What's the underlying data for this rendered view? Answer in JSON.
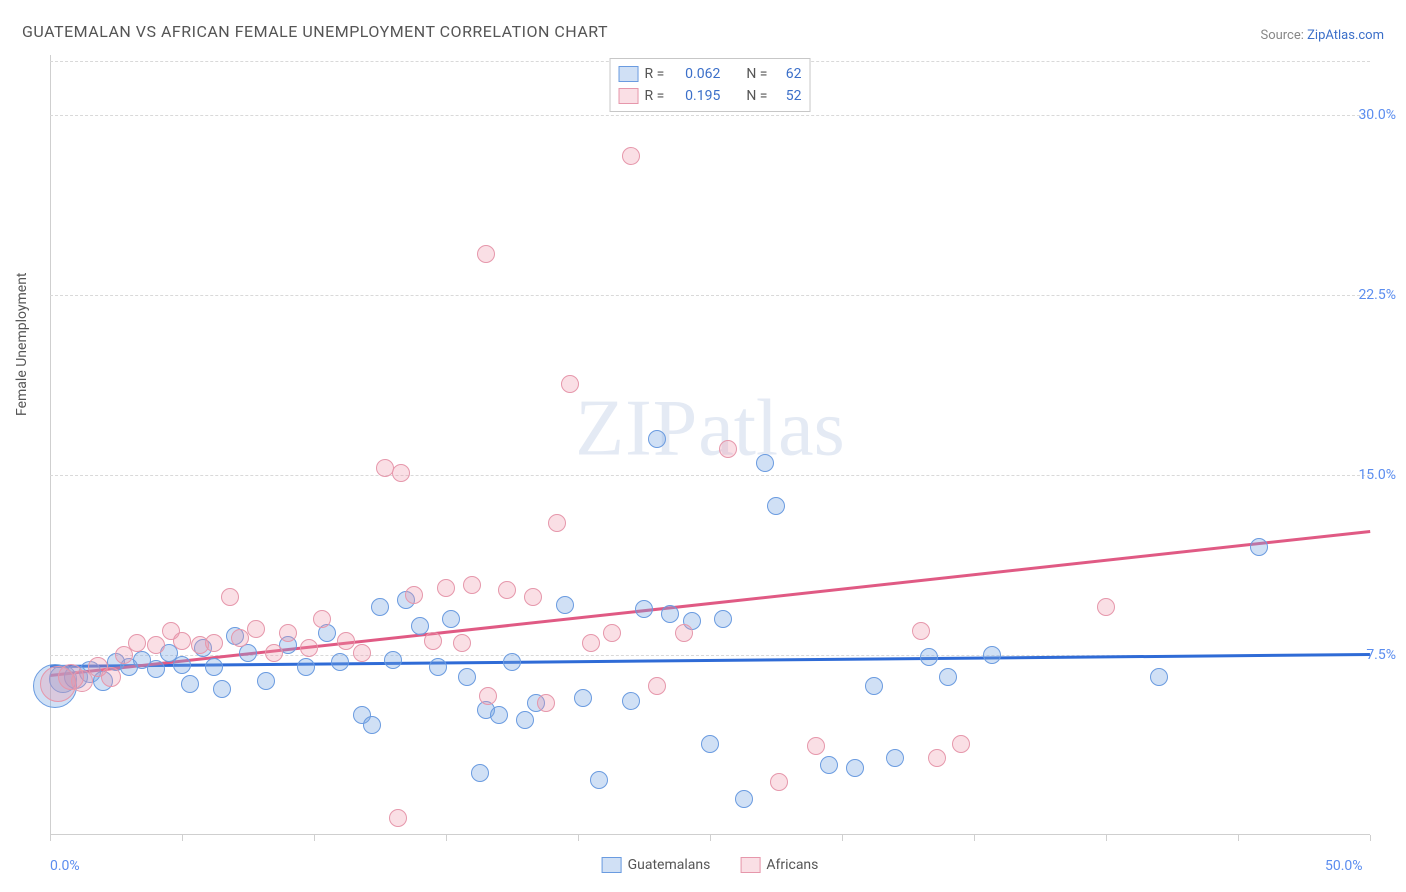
{
  "chart": {
    "type": "scatter",
    "title": "GUATEMALAN VS AFRICAN FEMALE UNEMPLOYMENT CORRELATION CHART",
    "source_label": "Source: ",
    "source_name": "ZipAtlas.com",
    "ylabel": "Female Unemployment",
    "watermark_primary": "ZIP",
    "watermark_secondary": "atlas",
    "background_color": "#ffffff",
    "grid_color": "#d9d9d9",
    "axis_color": "#cfcfcf",
    "tick_color": "#5b8def",
    "title_color": "#555555",
    "title_fontsize": 16,
    "label_fontsize": 14,
    "xlim": [
      0,
      50
    ],
    "ylim": [
      0,
      32.5
    ],
    "xticks": [
      0,
      5,
      10,
      15,
      20,
      25,
      30,
      35,
      40,
      45,
      50
    ],
    "xtick_labels": {
      "0": "0.0%",
      "50": "50.0%"
    },
    "yticks": [
      7.5,
      15.0,
      22.5,
      30.0
    ],
    "ytick_labels": [
      "7.5%",
      "15.0%",
      "22.5%",
      "30.0%"
    ],
    "series": [
      {
        "name": "Guatemalans",
        "fill_color": "rgba(120,165,225,0.35)",
        "stroke_color": "#6a9be0",
        "trend_color": "#2f6bd6",
        "trend_width": 2.5,
        "marker_radius": 9,
        "marker_stroke_width": 1.5,
        "R": "0.062",
        "N": "62",
        "trend": {
          "x1": 0,
          "y1": 7.1,
          "x2": 50,
          "y2": 7.6
        },
        "points": [
          {
            "x": 0.2,
            "y": 6.2,
            "r": 22
          },
          {
            "x": 0.5,
            "y": 6.5,
            "r": 14
          },
          {
            "x": 1.0,
            "y": 6.6,
            "r": 12
          },
          {
            "x": 1.5,
            "y": 6.8,
            "r": 11
          },
          {
            "x": 2.0,
            "y": 6.4,
            "r": 10
          },
          {
            "x": 2.5,
            "y": 7.2,
            "r": 9
          },
          {
            "x": 3.0,
            "y": 7.0,
            "r": 9
          },
          {
            "x": 3.5,
            "y": 7.3,
            "r": 9
          },
          {
            "x": 4.0,
            "y": 6.9,
            "r": 9
          },
          {
            "x": 4.5,
            "y": 7.6,
            "r": 9
          },
          {
            "x": 5.0,
            "y": 7.1,
            "r": 9
          },
          {
            "x": 5.3,
            "y": 6.3,
            "r": 9
          },
          {
            "x": 5.8,
            "y": 7.8,
            "r": 9
          },
          {
            "x": 6.2,
            "y": 7.0,
            "r": 9
          },
          {
            "x": 6.5,
            "y": 6.1,
            "r": 9
          },
          {
            "x": 7.0,
            "y": 8.3,
            "r": 9
          },
          {
            "x": 7.5,
            "y": 7.6,
            "r": 9
          },
          {
            "x": 8.2,
            "y": 6.4,
            "r": 9
          },
          {
            "x": 9.0,
            "y": 7.9,
            "r": 9
          },
          {
            "x": 9.7,
            "y": 7.0,
            "r": 9
          },
          {
            "x": 10.5,
            "y": 8.4,
            "r": 9
          },
          {
            "x": 11.0,
            "y": 7.2,
            "r": 9
          },
          {
            "x": 11.8,
            "y": 5.0,
            "r": 9
          },
          {
            "x": 12.2,
            "y": 4.6,
            "r": 9
          },
          {
            "x": 12.5,
            "y": 9.5,
            "r": 9
          },
          {
            "x": 13.0,
            "y": 7.3,
            "r": 9
          },
          {
            "x": 13.5,
            "y": 9.8,
            "r": 9
          },
          {
            "x": 14.0,
            "y": 8.7,
            "r": 9
          },
          {
            "x": 14.7,
            "y": 7.0,
            "r": 9
          },
          {
            "x": 15.2,
            "y": 9.0,
            "r": 9
          },
          {
            "x": 15.8,
            "y": 6.6,
            "r": 9
          },
          {
            "x": 16.3,
            "y": 2.6,
            "r": 9
          },
          {
            "x": 16.5,
            "y": 5.2,
            "r": 9
          },
          {
            "x": 17.0,
            "y": 5.0,
            "r": 9
          },
          {
            "x": 17.5,
            "y": 7.2,
            "r": 9
          },
          {
            "x": 18.0,
            "y": 4.8,
            "r": 9
          },
          {
            "x": 18.4,
            "y": 5.5,
            "r": 9
          },
          {
            "x": 19.5,
            "y": 9.6,
            "r": 9
          },
          {
            "x": 20.2,
            "y": 5.7,
            "r": 9
          },
          {
            "x": 20.8,
            "y": 2.3,
            "r": 9
          },
          {
            "x": 22.0,
            "y": 5.6,
            "r": 9
          },
          {
            "x": 22.5,
            "y": 9.4,
            "r": 9
          },
          {
            "x": 23.0,
            "y": 16.5,
            "r": 9
          },
          {
            "x": 23.5,
            "y": 9.2,
            "r": 9
          },
          {
            "x": 24.3,
            "y": 8.9,
            "r": 9
          },
          {
            "x": 25.0,
            "y": 3.8,
            "r": 9
          },
          {
            "x": 25.5,
            "y": 9.0,
            "r": 9
          },
          {
            "x": 26.3,
            "y": 1.5,
            "r": 9
          },
          {
            "x": 27.1,
            "y": 15.5,
            "r": 9
          },
          {
            "x": 27.5,
            "y": 13.7,
            "r": 9
          },
          {
            "x": 29.5,
            "y": 2.9,
            "r": 9
          },
          {
            "x": 30.5,
            "y": 2.8,
            "r": 9
          },
          {
            "x": 31.2,
            "y": 6.2,
            "r": 9
          },
          {
            "x": 32.0,
            "y": 3.2,
            "r": 9
          },
          {
            "x": 33.3,
            "y": 7.4,
            "r": 9
          },
          {
            "x": 34.0,
            "y": 6.6,
            "r": 9
          },
          {
            "x": 35.7,
            "y": 7.5,
            "r": 9
          },
          {
            "x": 42.0,
            "y": 6.6,
            "r": 9
          },
          {
            "x": 45.8,
            "y": 12.0,
            "r": 9
          }
        ]
      },
      {
        "name": "Africans",
        "fill_color": "rgba(240,150,170,0.30)",
        "stroke_color": "#e697ab",
        "trend_color": "#e05a84",
        "trend_width": 2.5,
        "marker_radius": 9,
        "marker_stroke_width": 1.5,
        "R": "0.195",
        "N": "52",
        "trend": {
          "x1": 0,
          "y1": 6.7,
          "x2": 50,
          "y2": 12.7
        },
        "points": [
          {
            "x": 0.3,
            "y": 6.3,
            "r": 18
          },
          {
            "x": 0.8,
            "y": 6.6,
            "r": 13
          },
          {
            "x": 1.2,
            "y": 6.4,
            "r": 11
          },
          {
            "x": 1.8,
            "y": 7.0,
            "r": 10
          },
          {
            "x": 2.3,
            "y": 6.6,
            "r": 10
          },
          {
            "x": 2.8,
            "y": 7.5,
            "r": 9
          },
          {
            "x": 3.3,
            "y": 8.0,
            "r": 9
          },
          {
            "x": 4.0,
            "y": 7.9,
            "r": 9
          },
          {
            "x": 4.6,
            "y": 8.5,
            "r": 9
          },
          {
            "x": 5.0,
            "y": 8.1,
            "r": 9
          },
          {
            "x": 5.7,
            "y": 7.9,
            "r": 9
          },
          {
            "x": 6.2,
            "y": 8.0,
            "r": 9
          },
          {
            "x": 6.8,
            "y": 9.9,
            "r": 9
          },
          {
            "x": 7.2,
            "y": 8.2,
            "r": 9
          },
          {
            "x": 7.8,
            "y": 8.6,
            "r": 9
          },
          {
            "x": 8.5,
            "y": 7.6,
            "r": 9
          },
          {
            "x": 9.0,
            "y": 8.4,
            "r": 9
          },
          {
            "x": 9.8,
            "y": 7.8,
            "r": 9
          },
          {
            "x": 10.3,
            "y": 9.0,
            "r": 9
          },
          {
            "x": 11.2,
            "y": 8.1,
            "r": 9
          },
          {
            "x": 11.8,
            "y": 7.6,
            "r": 9
          },
          {
            "x": 12.7,
            "y": 15.3,
            "r": 9
          },
          {
            "x": 13.2,
            "y": 0.7,
            "r": 9
          },
          {
            "x": 13.3,
            "y": 15.1,
            "r": 9
          },
          {
            "x": 13.8,
            "y": 10.0,
            "r": 9
          },
          {
            "x": 14.5,
            "y": 8.1,
            "r": 9
          },
          {
            "x": 15.0,
            "y": 10.3,
            "r": 9
          },
          {
            "x": 15.6,
            "y": 8.0,
            "r": 9
          },
          {
            "x": 16.0,
            "y": 10.4,
            "r": 9
          },
          {
            "x": 16.5,
            "y": 24.2,
            "r": 9
          },
          {
            "x": 16.6,
            "y": 5.8,
            "r": 9
          },
          {
            "x": 17.3,
            "y": 10.2,
            "r": 9
          },
          {
            "x": 18.3,
            "y": 9.9,
            "r": 9
          },
          {
            "x": 18.8,
            "y": 5.5,
            "r": 9
          },
          {
            "x": 19.2,
            "y": 13.0,
            "r": 9
          },
          {
            "x": 19.7,
            "y": 18.8,
            "r": 9
          },
          {
            "x": 20.5,
            "y": 8.0,
            "r": 9
          },
          {
            "x": 21.3,
            "y": 8.4,
            "r": 9
          },
          {
            "x": 22.0,
            "y": 28.3,
            "r": 9
          },
          {
            "x": 23.0,
            "y": 6.2,
            "r": 9
          },
          {
            "x": 24.0,
            "y": 8.4,
            "r": 9
          },
          {
            "x": 25.7,
            "y": 16.1,
            "r": 9
          },
          {
            "x": 27.6,
            "y": 2.2,
            "r": 9
          },
          {
            "x": 29.0,
            "y": 3.7,
            "r": 9
          },
          {
            "x": 33.0,
            "y": 8.5,
            "r": 9
          },
          {
            "x": 33.6,
            "y": 3.2,
            "r": 9
          },
          {
            "x": 34.5,
            "y": 3.8,
            "r": 9
          },
          {
            "x": 40.0,
            "y": 9.5,
            "r": 9
          }
        ]
      }
    ],
    "legend_top": {
      "R_label": "R =",
      "N_label": "N ="
    },
    "legend_bottom": [
      {
        "label": "Guatemalans",
        "series": 0
      },
      {
        "label": "Africans",
        "series": 1
      }
    ]
  }
}
